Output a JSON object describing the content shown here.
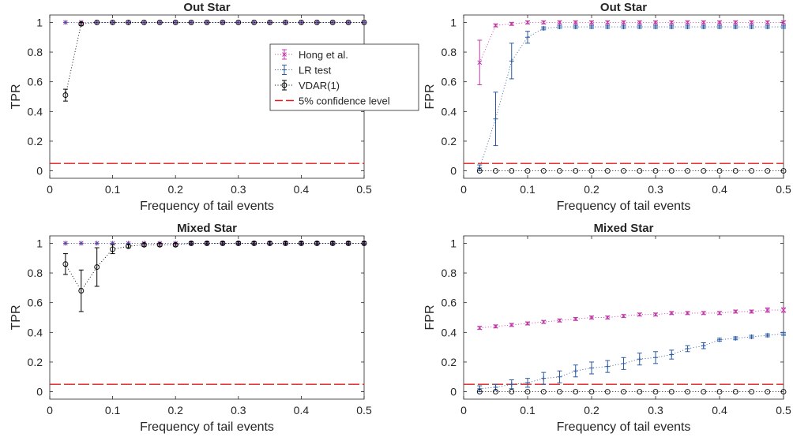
{
  "chart_data": [
    {
      "type": "line",
      "title": "Out Star",
      "xlabel": "Frequency of tail events",
      "ylabel": "TPR",
      "xlim": [
        0,
        0.5
      ],
      "ylim": [
        -0.05,
        1.05
      ],
      "xticks": [
        "0",
        "0.1",
        "0.2",
        "0.3",
        "0.4",
        "0.5"
      ],
      "yticks": [
        "0",
        "0.2",
        "0.4",
        "0.6",
        "0.8",
        "1"
      ],
      "x": [
        0.025,
        0.05,
        0.075,
        0.1,
        0.125,
        0.15,
        0.175,
        0.2,
        0.225,
        0.25,
        0.275,
        0.3,
        0.325,
        0.35,
        0.375,
        0.4,
        0.425,
        0.45,
        0.475,
        0.5
      ],
      "reference_line": {
        "y": 0.05,
        "color": "#e41a1c"
      },
      "series": [
        {
          "name": "Hong et al.",
          "color": "#c13aa8",
          "marker": "x",
          "values": [
            1,
            1,
            1,
            1,
            1,
            1,
            1,
            1,
            1,
            1,
            1,
            1,
            1,
            1,
            1,
            1,
            1,
            1,
            1,
            1
          ],
          "errors": [
            0,
            0,
            0,
            0,
            0,
            0,
            0,
            0,
            0,
            0,
            0,
            0,
            0,
            0,
            0,
            0,
            0,
            0,
            0,
            0
          ]
        },
        {
          "name": "LR test",
          "color": "#2b5aa0",
          "marker": "+",
          "values": [
            1,
            1,
            1,
            1,
            1,
            1,
            1,
            1,
            1,
            1,
            1,
            1,
            1,
            1,
            1,
            1,
            1,
            1,
            1,
            1
          ],
          "errors": [
            0,
            0,
            0,
            0,
            0,
            0,
            0,
            0,
            0,
            0,
            0,
            0,
            0,
            0,
            0,
            0,
            0,
            0,
            0,
            0
          ]
        },
        {
          "name": "VDAR(1)",
          "color": "#000000",
          "marker": "o",
          "values": [
            0.51,
            0.99,
            1,
            1,
            1,
            1,
            1,
            1,
            1,
            1,
            1,
            1,
            1,
            1,
            1,
            1,
            1,
            1,
            1,
            1
          ],
          "errors": [
            0.04,
            0.01,
            0,
            0,
            0,
            0,
            0,
            0,
            0,
            0,
            0,
            0,
            0,
            0,
            0,
            0,
            0,
            0,
            0,
            0
          ]
        }
      ]
    },
    {
      "type": "line",
      "title": "Out Star",
      "xlabel": "Frequency of tail events",
      "ylabel": "FPR",
      "xlim": [
        0,
        0.5
      ],
      "ylim": [
        -0.05,
        1.05
      ],
      "xticks": [
        "0",
        "0.1",
        "0.2",
        "0.3",
        "0.4",
        "0.5"
      ],
      "yticks": [
        "0",
        "0.2",
        "0.4",
        "0.6",
        "0.8",
        "1"
      ],
      "x": [
        0.025,
        0.05,
        0.075,
        0.1,
        0.125,
        0.15,
        0.175,
        0.2,
        0.225,
        0.25,
        0.275,
        0.3,
        0.325,
        0.35,
        0.375,
        0.4,
        0.425,
        0.45,
        0.475,
        0.5
      ],
      "reference_line": {
        "y": 0.05,
        "color": "#e41a1c"
      },
      "series": [
        {
          "name": "Hong et al.",
          "color": "#c13aa8",
          "marker": "x",
          "values": [
            0.73,
            0.98,
            0.99,
            1,
            1,
            1,
            1,
            1,
            1,
            1,
            1,
            1,
            1,
            1,
            1,
            1,
            1,
            1,
            1,
            1
          ],
          "errors": [
            0.15,
            0.01,
            0.01,
            0.01,
            0.01,
            0.01,
            0.01,
            0.01,
            0.01,
            0.01,
            0.01,
            0.01,
            0.01,
            0.01,
            0.01,
            0.01,
            0.01,
            0.01,
            0.01,
            0.01
          ]
        },
        {
          "name": "LR test",
          "color": "#2b5aa0",
          "marker": "+",
          "values": [
            0.02,
            0.35,
            0.74,
            0.9,
            0.96,
            0.97,
            0.97,
            0.97,
            0.97,
            0.97,
            0.97,
            0.97,
            0.97,
            0.97,
            0.97,
            0.97,
            0.97,
            0.97,
            0.97,
            0.97
          ],
          "errors": [
            0.02,
            0.18,
            0.12,
            0.04,
            0.01,
            0.01,
            0.01,
            0.01,
            0.01,
            0.01,
            0.01,
            0.01,
            0.01,
            0.01,
            0.01,
            0.01,
            0.01,
            0.01,
            0.01,
            0.01
          ]
        },
        {
          "name": "VDAR(1)",
          "color": "#000000",
          "marker": "o",
          "values": [
            0,
            0,
            0,
            0,
            0,
            0,
            0,
            0,
            0,
            0,
            0,
            0,
            0,
            0,
            0,
            0,
            0,
            0,
            0,
            0
          ],
          "errors": [
            0,
            0,
            0,
            0,
            0,
            0,
            0,
            0,
            0,
            0,
            0,
            0,
            0,
            0,
            0,
            0,
            0,
            0,
            0,
            0
          ]
        }
      ]
    },
    {
      "type": "line",
      "title": "Mixed Star",
      "xlabel": "Frequency of tail events",
      "ylabel": "TPR",
      "xlim": [
        0,
        0.5
      ],
      "ylim": [
        -0.05,
        1.05
      ],
      "xticks": [
        "0",
        "0.1",
        "0.2",
        "0.3",
        "0.4",
        "0.5"
      ],
      "yticks": [
        "0",
        "0.2",
        "0.4",
        "0.6",
        "0.8",
        "1"
      ],
      "x": [
        0.025,
        0.05,
        0.075,
        0.1,
        0.125,
        0.15,
        0.175,
        0.2,
        0.225,
        0.25,
        0.275,
        0.3,
        0.325,
        0.35,
        0.375,
        0.4,
        0.425,
        0.45,
        0.475,
        0.5
      ],
      "reference_line": {
        "y": 0.05,
        "color": "#e41a1c"
      },
      "series": [
        {
          "name": "Hong et al.",
          "color": "#c13aa8",
          "marker": "x",
          "values": [
            1,
            1,
            1,
            1,
            1,
            1,
            1,
            1,
            1,
            1,
            1,
            1,
            1,
            1,
            1,
            1,
            1,
            1,
            1,
            1
          ],
          "errors": [
            0,
            0,
            0,
            0,
            0,
            0,
            0,
            0,
            0,
            0,
            0,
            0,
            0,
            0,
            0,
            0,
            0,
            0,
            0,
            0
          ]
        },
        {
          "name": "LR test",
          "color": "#2b5aa0",
          "marker": "+",
          "values": [
            1,
            1,
            1,
            1,
            1,
            1,
            1,
            1,
            1,
            1,
            1,
            1,
            1,
            1,
            1,
            1,
            1,
            1,
            1,
            1
          ],
          "errors": [
            0,
            0,
            0,
            0,
            0,
            0,
            0,
            0,
            0,
            0,
            0,
            0,
            0,
            0,
            0,
            0,
            0,
            0,
            0,
            0
          ]
        },
        {
          "name": "VDAR(1)",
          "color": "#000000",
          "marker": "o",
          "values": [
            0.86,
            0.68,
            0.84,
            0.96,
            0.98,
            0.99,
            0.99,
            0.99,
            1,
            1,
            1,
            1,
            1,
            1,
            1,
            1,
            1,
            1,
            1,
            1
          ],
          "errors": [
            0.07,
            0.14,
            0.13,
            0.03,
            0.01,
            0.01,
            0.01,
            0.01,
            0.01,
            0.01,
            0.01,
            0.01,
            0.01,
            0.01,
            0.01,
            0.01,
            0.01,
            0.01,
            0.01,
            0.01
          ]
        }
      ]
    },
    {
      "type": "line",
      "title": "Mixed Star",
      "xlabel": "Frequency of tail events",
      "ylabel": "FPR",
      "xlim": [
        0,
        0.5
      ],
      "ylim": [
        -0.05,
        1.05
      ],
      "xticks": [
        "0",
        "0.1",
        "0.2",
        "0.3",
        "0.4",
        "0.5"
      ],
      "yticks": [
        "0",
        "0.2",
        "0.4",
        "0.6",
        "0.8",
        "1"
      ],
      "x": [
        0.025,
        0.05,
        0.075,
        0.1,
        0.125,
        0.15,
        0.175,
        0.2,
        0.225,
        0.25,
        0.275,
        0.3,
        0.325,
        0.35,
        0.375,
        0.4,
        0.425,
        0.45,
        0.475,
        0.5
      ],
      "reference_line": {
        "y": 0.05,
        "color": "#e41a1c"
      },
      "series": [
        {
          "name": "Hong et al.",
          "color": "#c13aa8",
          "marker": "x",
          "values": [
            0.43,
            0.44,
            0.45,
            0.46,
            0.47,
            0.48,
            0.49,
            0.5,
            0.5,
            0.51,
            0.52,
            0.52,
            0.53,
            0.53,
            0.53,
            0.53,
            0.54,
            0.54,
            0.55,
            0.55
          ],
          "errors": [
            0.01,
            0.01,
            0.01,
            0.01,
            0.01,
            0.01,
            0.01,
            0.01,
            0.01,
            0.01,
            0.01,
            0.01,
            0.01,
            0.01,
            0.01,
            0.01,
            0.01,
            0.01,
            0.015,
            0.015
          ]
        },
        {
          "name": "LR test",
          "color": "#2b5aa0",
          "marker": "+",
          "values": [
            0.02,
            0.03,
            0.05,
            0.06,
            0.09,
            0.1,
            0.14,
            0.16,
            0.17,
            0.19,
            0.22,
            0.23,
            0.25,
            0.29,
            0.31,
            0.35,
            0.36,
            0.37,
            0.38,
            0.39
          ],
          "errors": [
            0.02,
            0.02,
            0.03,
            0.03,
            0.04,
            0.04,
            0.04,
            0.04,
            0.04,
            0.04,
            0.04,
            0.04,
            0.03,
            0.02,
            0.02,
            0.01,
            0.01,
            0.01,
            0.01,
            0.01
          ]
        },
        {
          "name": "VDAR(1)",
          "color": "#000000",
          "marker": "o",
          "values": [
            0,
            0,
            0,
            0,
            0,
            0,
            0,
            0,
            0,
            0,
            0,
            0,
            0,
            0,
            0,
            0,
            0,
            0,
            0,
            0
          ],
          "errors": [
            0,
            0,
            0,
            0,
            0,
            0,
            0,
            0,
            0,
            0,
            0,
            0,
            0,
            0,
            0,
            0,
            0,
            0,
            0,
            0
          ]
        }
      ]
    }
  ],
  "legend": {
    "placement": "top-right of first panel",
    "entries": [
      {
        "label": "Hong et al.",
        "color": "#c13aa8",
        "marker": "x"
      },
      {
        "label": "LR test",
        "color": "#2b5aa0",
        "marker": "+"
      },
      {
        "label": "VDAR(1)",
        "color": "#000000",
        "marker": "o"
      },
      {
        "label": "5% confidence level",
        "color": "#e41a1c",
        "marker": "dash"
      }
    ]
  }
}
